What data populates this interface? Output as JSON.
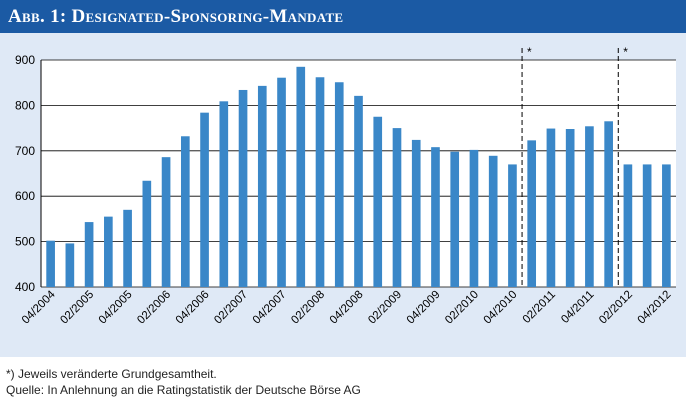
{
  "header": {
    "title": "Abb. 1: Designated-Sponsoring-Mandate"
  },
  "chart_data": {
    "type": "bar",
    "title": "Abb. 1: Designated-Sponsoring-Mandate",
    "xlabel": "",
    "ylabel": "",
    "ylim": [
      400,
      900
    ],
    "yticks": [
      400,
      500,
      600,
      700,
      800,
      900
    ],
    "grid": true,
    "bar_color": "#3a87c8",
    "categories": [
      "04/2004",
      "",
      "02/2005",
      "",
      "04/2005",
      "",
      "02/2006",
      "",
      "04/2006",
      "",
      "02/2007",
      "",
      "04/2007",
      "",
      "02/2008",
      "",
      "04/2008",
      "",
      "02/2009",
      "",
      "04/2009",
      "",
      "02/2010",
      "",
      "04/2010",
      "",
      "02/2011",
      "",
      "04/2011",
      "",
      "02/2012",
      "",
      "04/2012"
    ],
    "values": [
      502,
      496,
      543,
      555,
      570,
      634,
      686,
      732,
      784,
      809,
      834,
      843,
      861,
      885,
      862,
      851,
      821,
      775,
      750,
      724,
      708,
      698,
      702,
      689,
      670,
      723,
      749,
      748,
      754,
      765,
      670,
      670,
      670
    ],
    "markers": [
      {
        "after_index": 24,
        "label": "*"
      },
      {
        "after_index": 29,
        "label": "*"
      }
    ]
  },
  "footnotes": {
    "note": "*) Jeweils veränderte Grundgesamtheit.",
    "source": "Quelle: In Anlehnung an die Ratingstatistik der Deutsche Börse AG"
  }
}
